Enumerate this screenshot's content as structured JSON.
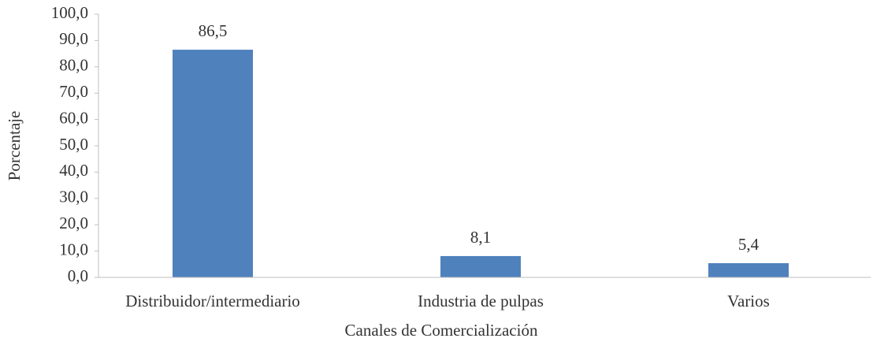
{
  "chart_data": {
    "type": "bar",
    "xlabel": "Canales de Comercialización",
    "ylabel": "Porcentaje",
    "categories": [
      "Distribuidor/intermediario",
      "Industria de pulpas",
      "Varios"
    ],
    "values": [
      86.5,
      8.1,
      5.4
    ],
    "value_labels": [
      "86,5",
      "8,1",
      "5,4"
    ],
    "color": "#4f81bd",
    "ylim": [
      0,
      100
    ],
    "yticks": [
      {
        "value": 0,
        "label": "0,0"
      },
      {
        "value": 10,
        "label": "10,0"
      },
      {
        "value": 20,
        "label": "20,0"
      },
      {
        "value": 30,
        "label": "30,0"
      },
      {
        "value": 40,
        "label": "40,0"
      },
      {
        "value": 50,
        "label": "50,0"
      },
      {
        "value": 60,
        "label": "60,0"
      },
      {
        "value": 70,
        "label": "70,0"
      },
      {
        "value": 80,
        "label": "80,0"
      },
      {
        "value": 90,
        "label": "90,0"
      },
      {
        "value": 100,
        "label": "100,0"
      }
    ],
    "grid": false
  }
}
